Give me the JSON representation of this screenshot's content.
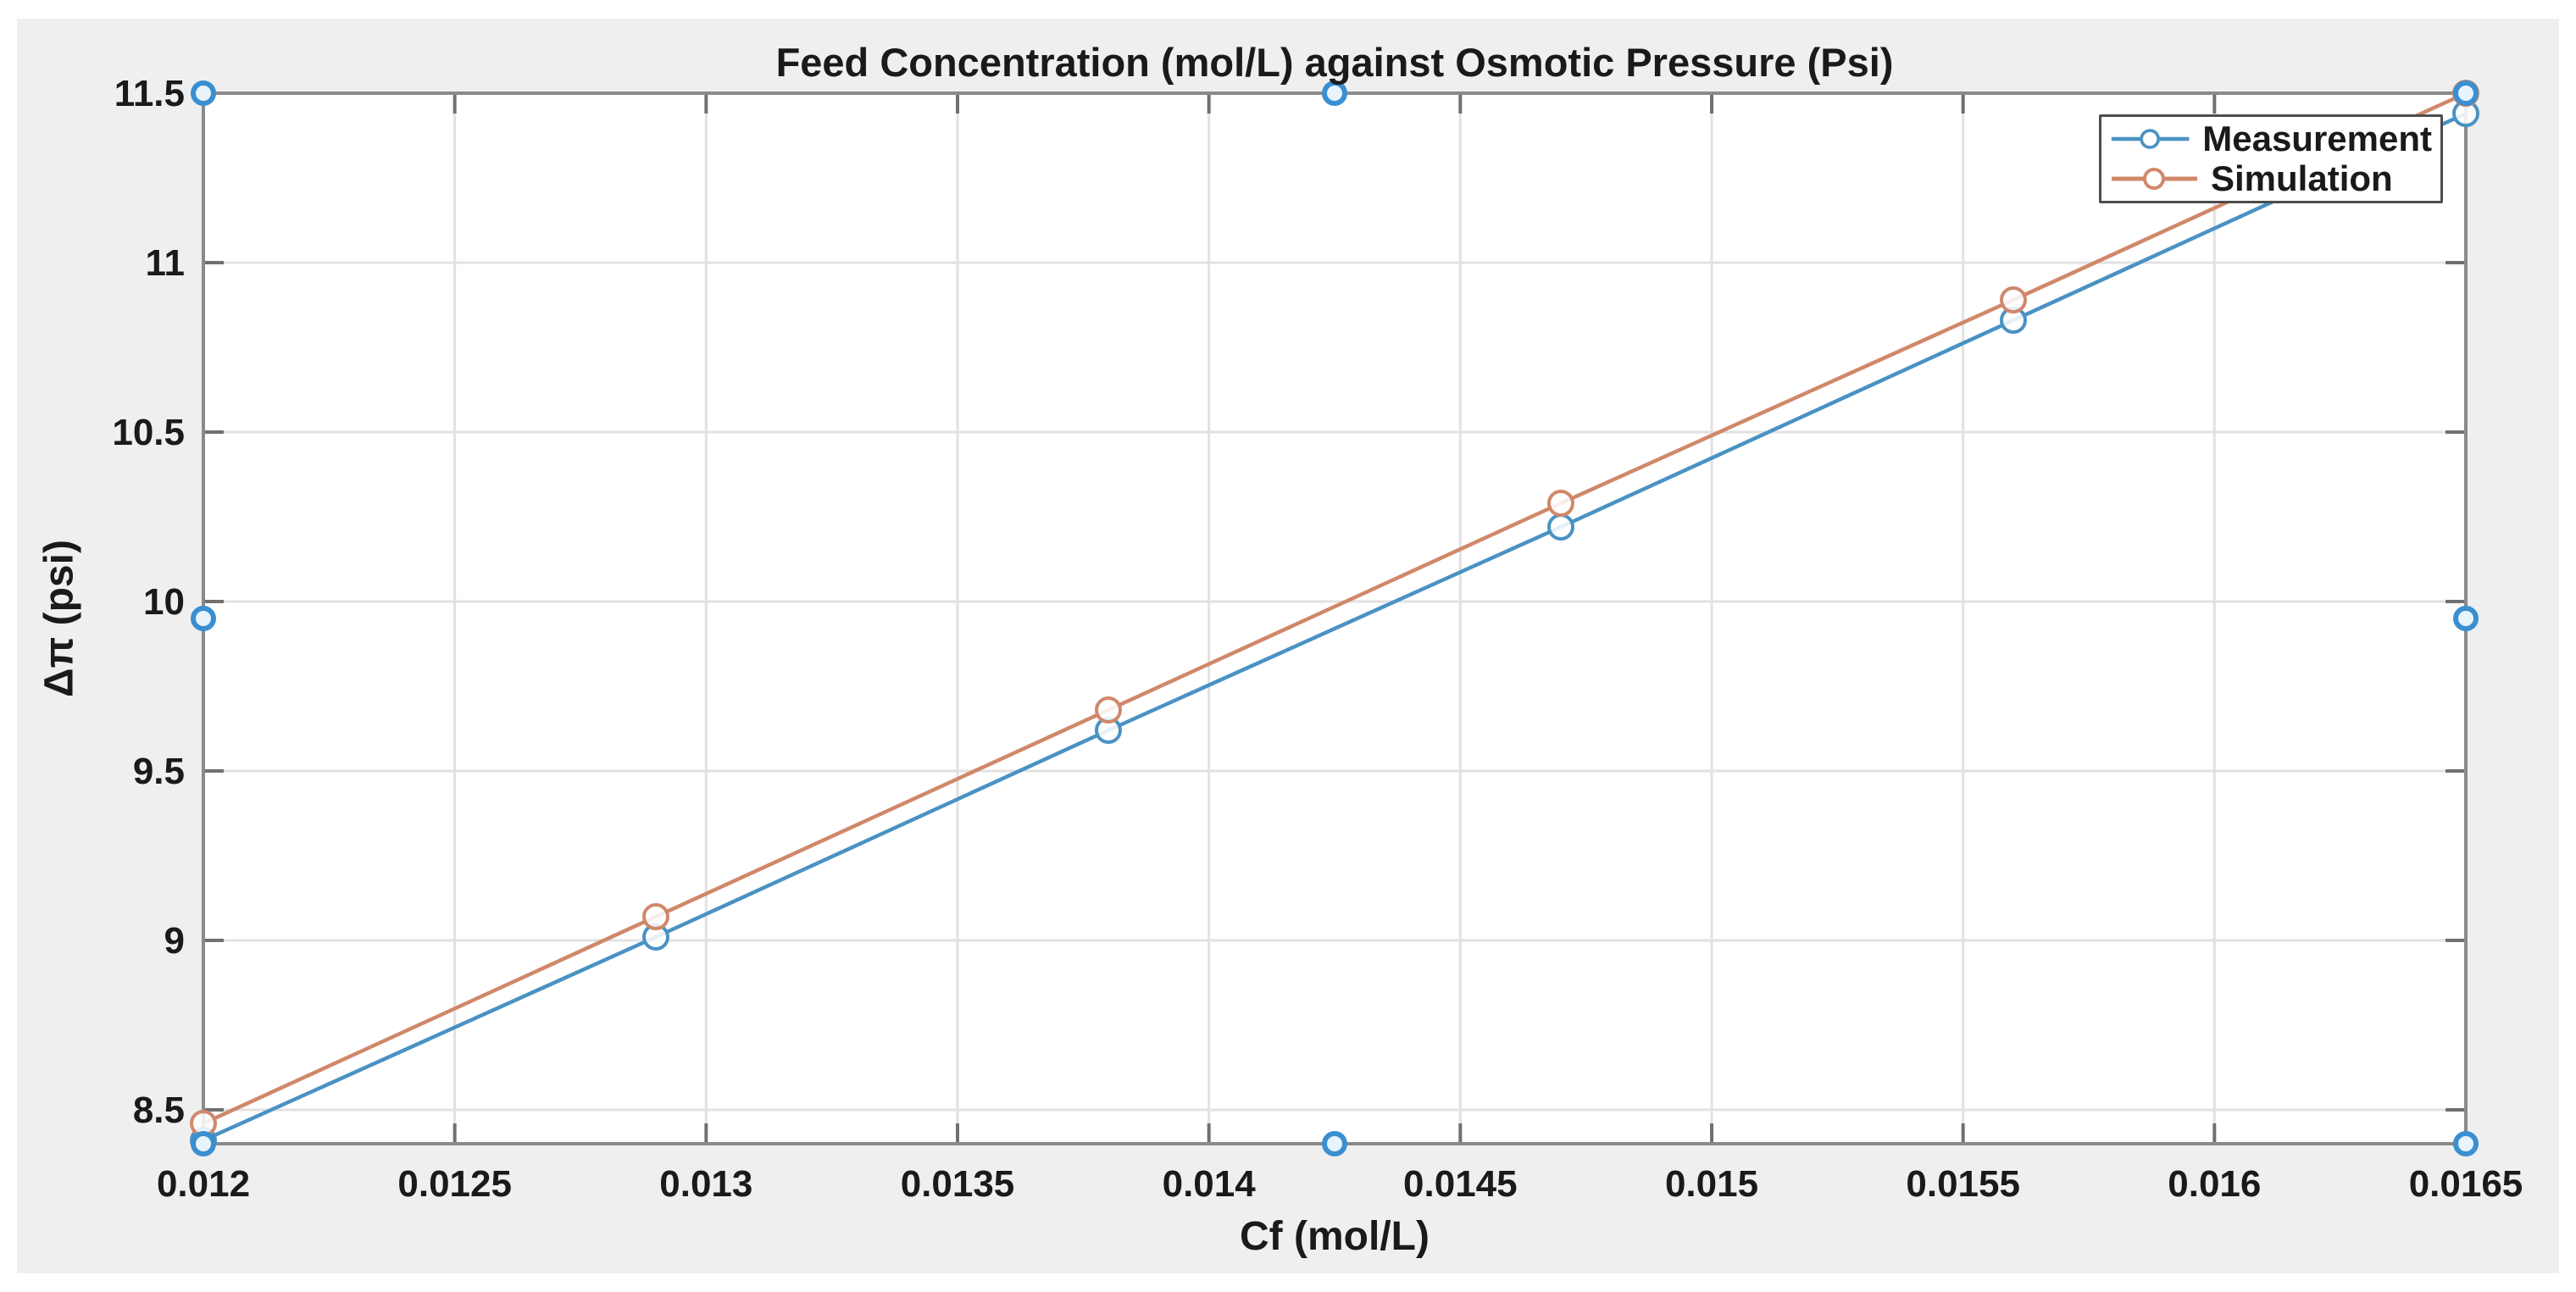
{
  "figure": {
    "type": "matlab-figure-screenshot",
    "state": "selected-in-document"
  },
  "chart_data": {
    "type": "line",
    "title": "Feed Concentration (mol/L) against Osmotic Pressure (Psi)",
    "xlabel": "Cf (mol/L)",
    "ylabel": "Δπ (psi)",
    "x": [
      0.012,
      0.0129,
      0.0138,
      0.0147,
      0.0156,
      0.0165
    ],
    "series": [
      {
        "name": "Measurement",
        "color": "#4a92c3",
        "marker": "circle",
        "values": [
          8.41,
          9.01,
          9.62,
          10.22,
          10.83,
          11.44
        ]
      },
      {
        "name": "Simulation",
        "color": "#d0886a",
        "marker": "circle",
        "values": [
          8.46,
          9.07,
          9.68,
          10.29,
          10.89,
          11.5
        ]
      }
    ],
    "xlim": [
      0.012,
      0.0165
    ],
    "ylim": [
      8.4,
      11.5
    ],
    "xticks": [
      "0.012",
      "0.0125",
      "0.013",
      "0.0135",
      "0.014",
      "0.0145",
      "0.015",
      "0.0155",
      "0.016",
      "0.0165"
    ],
    "yticks": [
      "8.5",
      "9",
      "9.5",
      "10",
      "10.5",
      "11",
      "11.5"
    ],
    "grid": true,
    "legend_position": "top-right"
  },
  "legend": {
    "entries": [
      "Measurement",
      "Simulation"
    ]
  },
  "selection": {
    "handles": [
      "top-left",
      "top-center",
      "top-right",
      "middle-left",
      "middle-right",
      "bottom-left",
      "bottom-center",
      "bottom-right"
    ]
  },
  "colors": {
    "figure_bg": "#efefef",
    "plot_bg": "#ffffff",
    "axis": "#8a8a8a",
    "tick": "#707070",
    "grid": "#e2e2e2",
    "text": "#1a1a1a",
    "legend_border": "#4d4d4d",
    "handle_stroke": "#3a8fd0",
    "handle_fill": "#e8f4fc"
  }
}
